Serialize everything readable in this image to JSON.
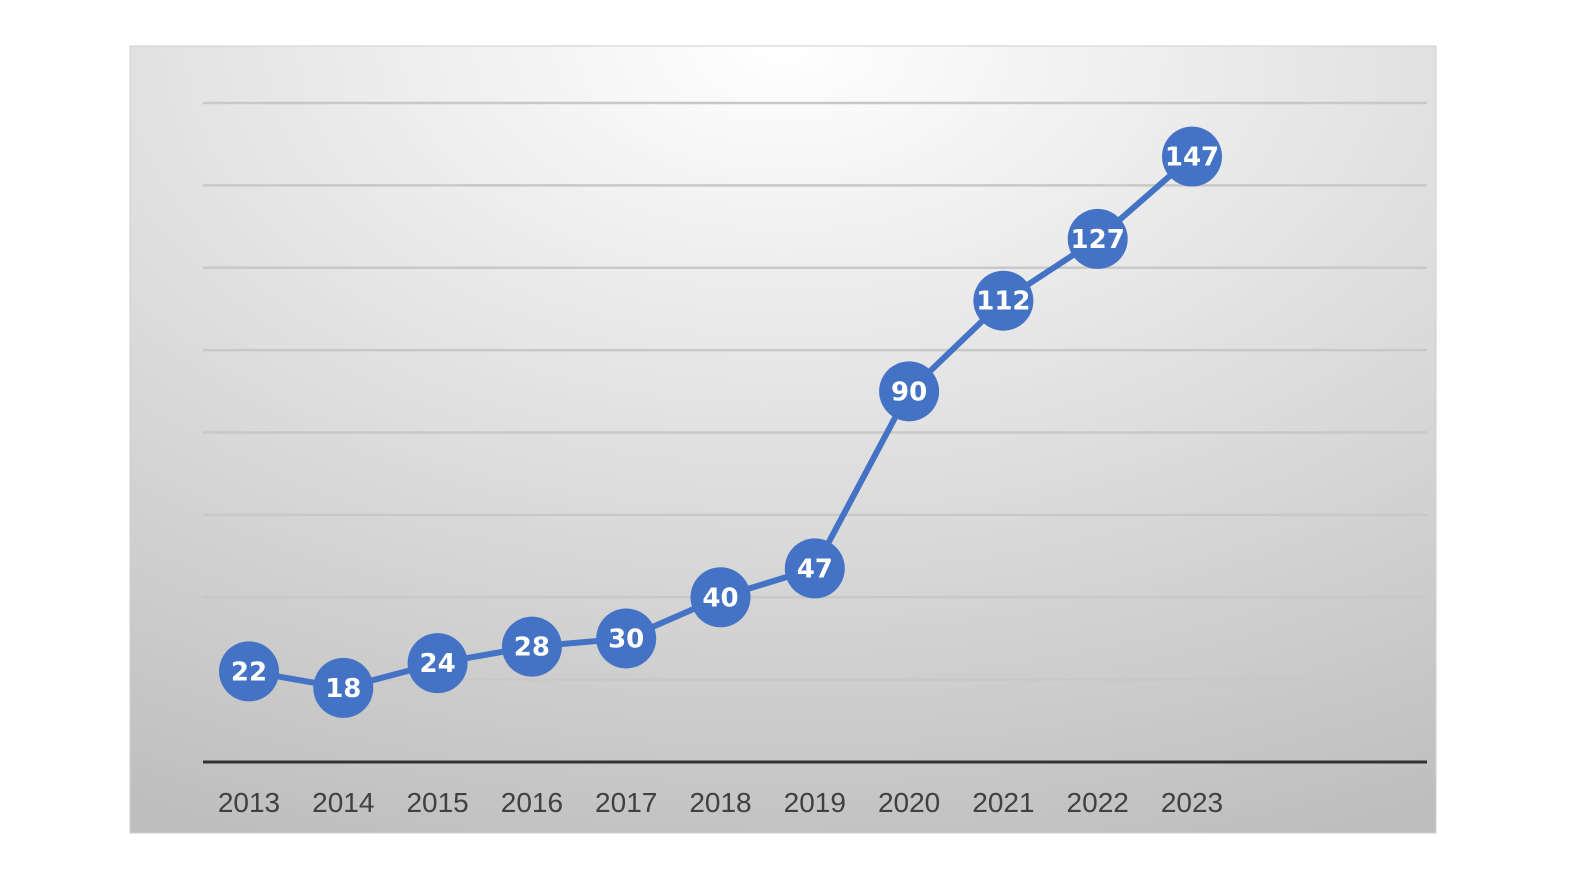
{
  "chart_data": {
    "type": "line",
    "title": "",
    "xlabel": "",
    "ylabel": "",
    "categories": [
      "2013",
      "2014",
      "2015",
      "2016",
      "2017",
      "2018",
      "2019",
      "2020",
      "2021",
      "2022",
      "2023"
    ],
    "series": [
      {
        "values": [
          22,
          18,
          24,
          28,
          30,
          40,
          47,
          90,
          112,
          127,
          147
        ]
      }
    ],
    "ylim": [
      0,
      160
    ],
    "grid": true,
    "legend": "none",
    "data_labels": true,
    "colors": {
      "line": "#4472C4",
      "marker": "#4472C4",
      "label_text": "#FFFFFF",
      "gridline": "#C8C8C8",
      "axis": "#333333",
      "plot_bg_center": "#FFFFFF",
      "plot_bg_edge": "#BDBDBD"
    }
  }
}
